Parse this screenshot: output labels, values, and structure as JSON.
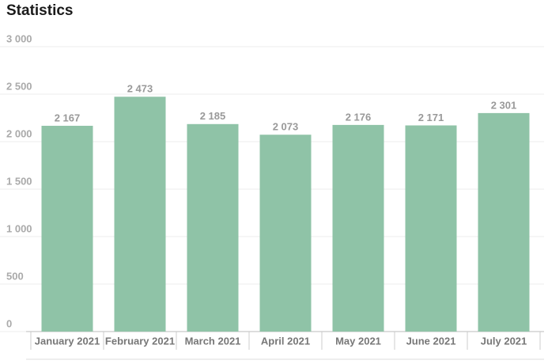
{
  "chart_data": {
    "type": "bar",
    "title": "Statistics",
    "categories": [
      "January 2021",
      "February 2021",
      "March 2021",
      "April 2021",
      "May 2021",
      "June 2021",
      "July 2021"
    ],
    "values": [
      2167,
      2473,
      2185,
      2073,
      2176,
      2171,
      2301
    ],
    "value_labels": [
      "2 167",
      "2 473",
      "2 185",
      "2 073",
      "2 176",
      "2 171",
      "2 301"
    ],
    "color": "#8fc3a7",
    "ylim": [
      0,
      3000
    ],
    "yticks": [
      0,
      500,
      {
        "value": 1000,
        "label": "1 000"
      },
      {
        "value": 1500,
        "label": "1 500"
      },
      {
        "value": 2000,
        "label": "2 000"
      },
      {
        "value": 2500,
        "label": "2 500"
      },
      {
        "value": 3000,
        "label": "3 000"
      }
    ],
    "grid": true
  }
}
